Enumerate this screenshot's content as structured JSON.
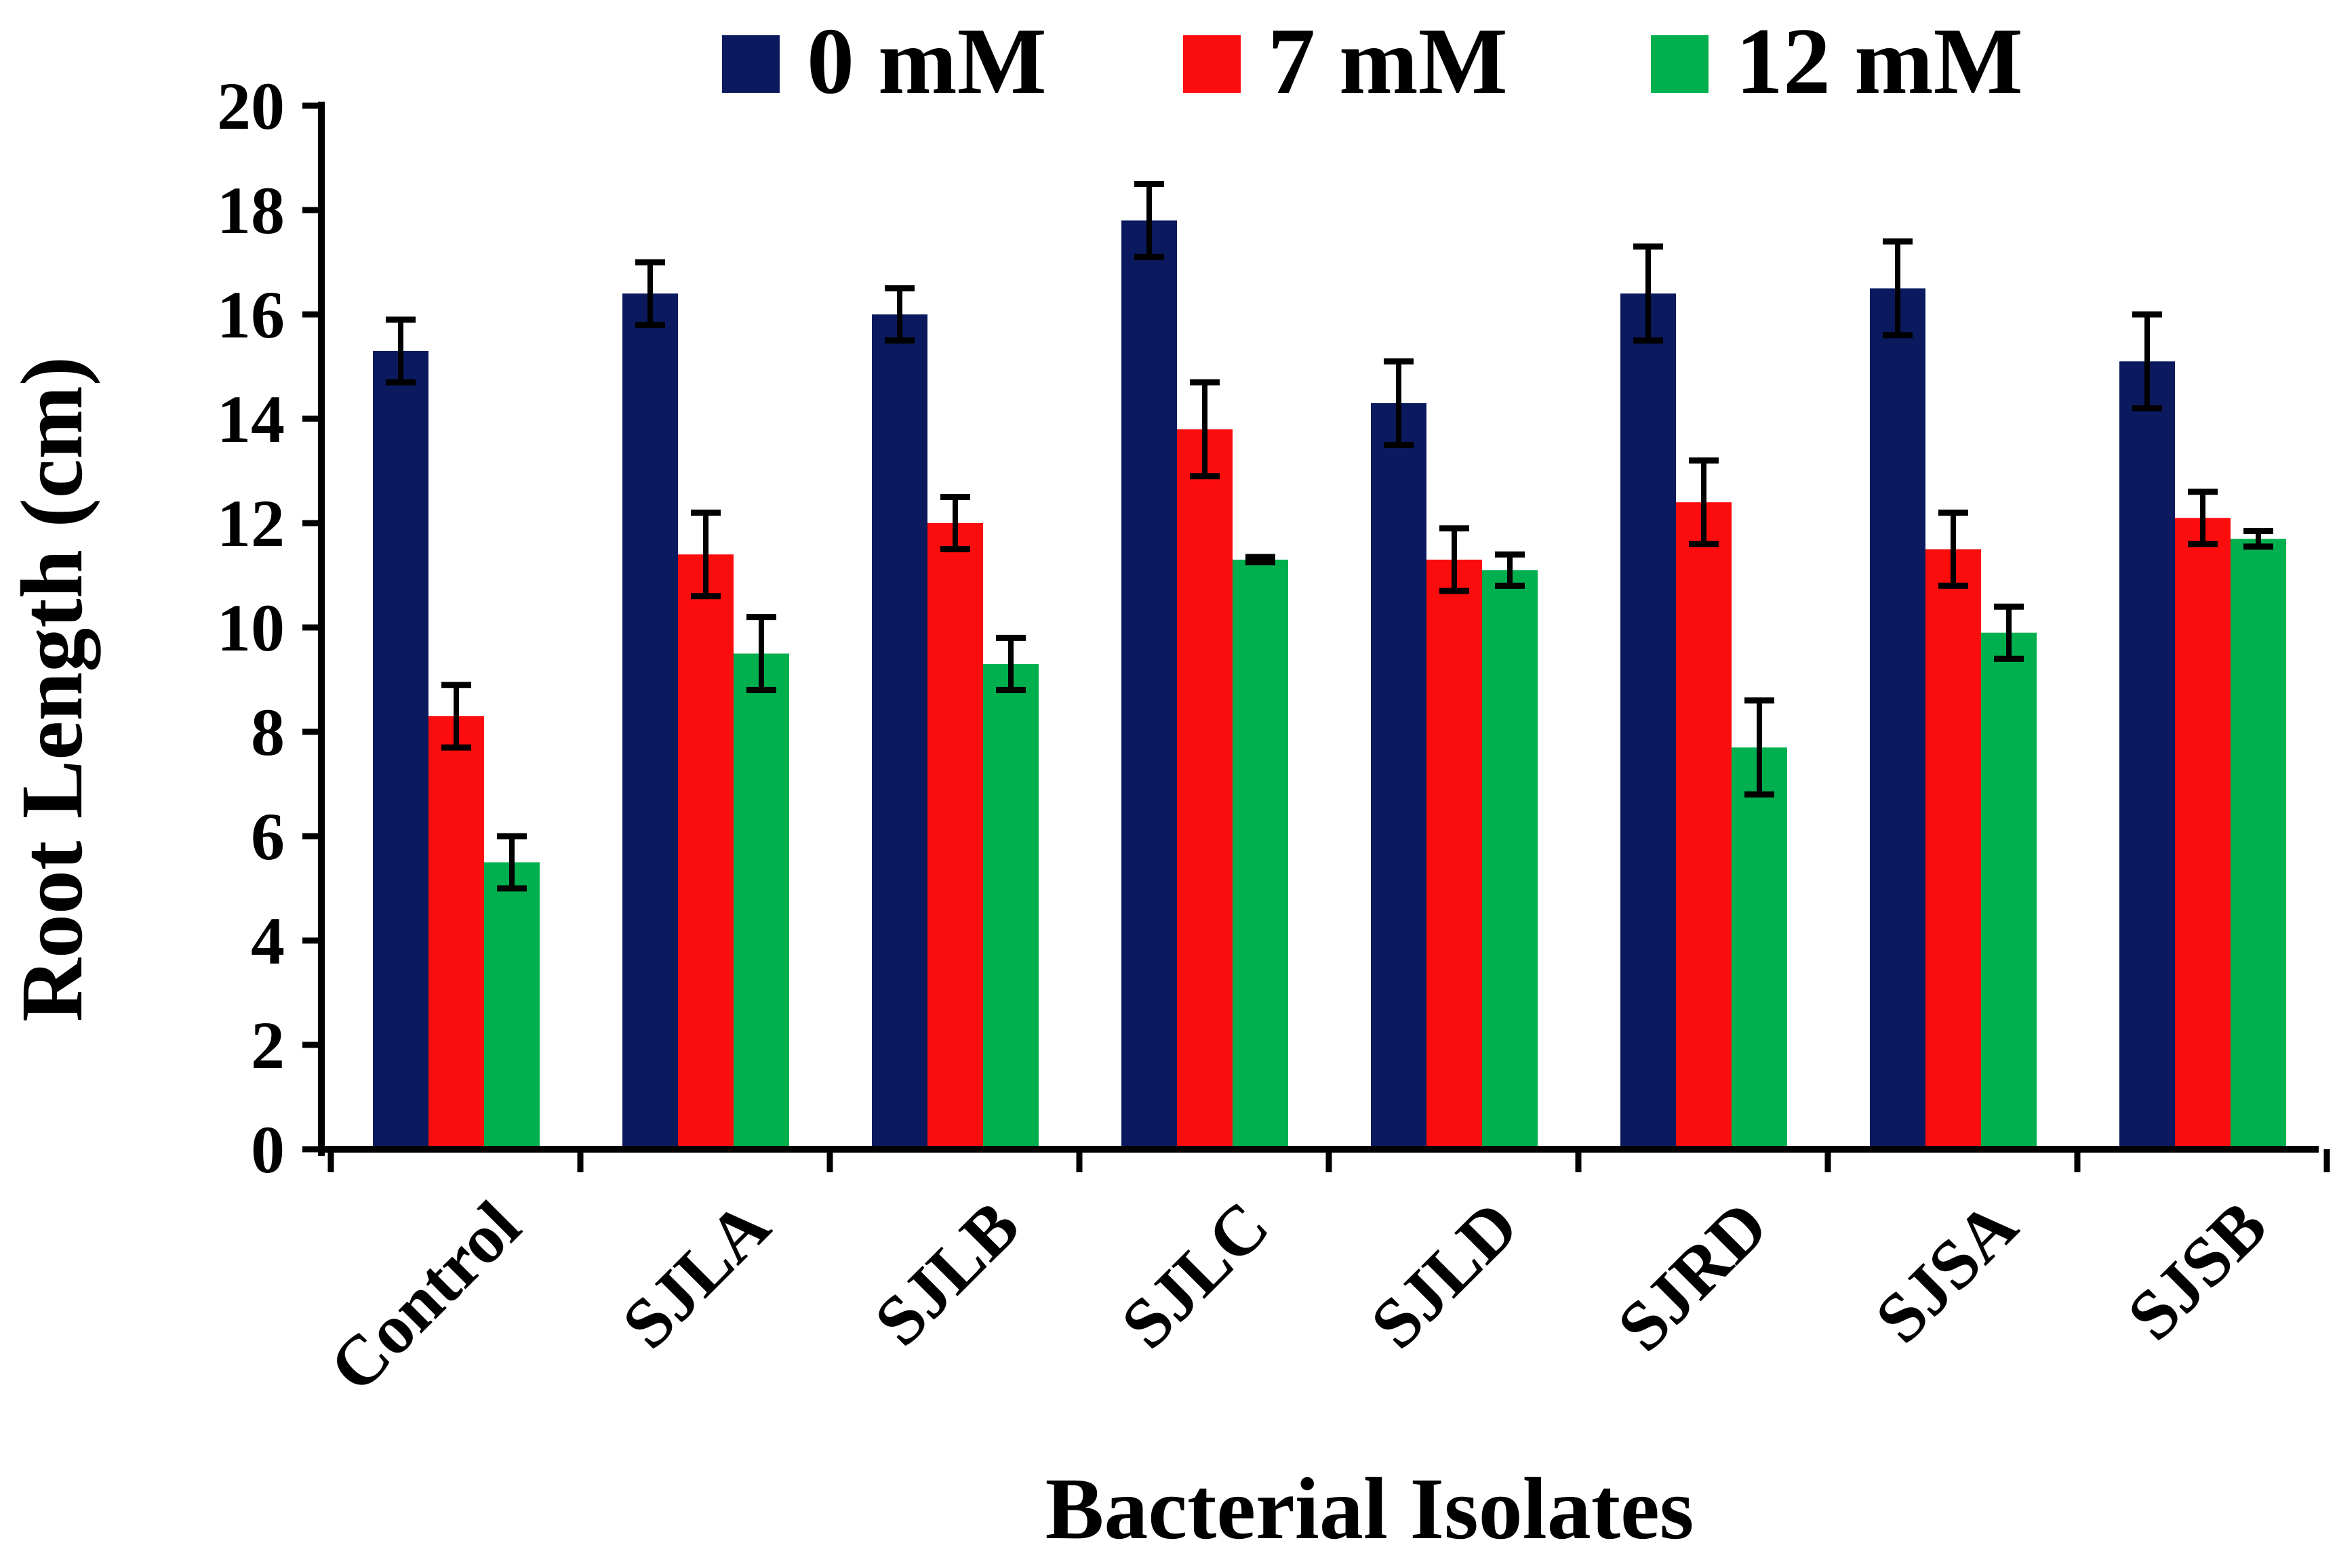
{
  "chart_data": {
    "type": "bar",
    "title": "",
    "xlabel": "Bacterial Isolates",
    "ylabel": "Root Length (cm)",
    "ylim": [
      0,
      20
    ],
    "yticks": [
      "0",
      "2",
      "4",
      "6",
      "8",
      "10",
      "12",
      "14",
      "16",
      "18",
      "20"
    ],
    "categories": [
      "Control",
      "SJLA",
      "SJLB",
      "SJLC",
      "SJLD",
      "SJRD",
      "SJSA",
      "SJSB"
    ],
    "series": [
      {
        "name": "0 mM",
        "color": "#0b1a5e",
        "values": [
          15.3,
          16.4,
          16.0,
          17.8,
          14.3,
          16.4,
          16.5,
          15.1
        ],
        "errors": [
          0.6,
          0.6,
          0.5,
          0.7,
          0.8,
          0.9,
          0.9,
          0.9
        ]
      },
      {
        "name": "7 mM",
        "color": "#fb0d0d",
        "values": [
          8.3,
          11.4,
          12.0,
          13.8,
          11.3,
          12.4,
          11.5,
          12.1
        ],
        "errors": [
          0.6,
          0.8,
          0.5,
          0.9,
          0.6,
          0.8,
          0.7,
          0.5
        ]
      },
      {
        "name": "12 mM",
        "color": "#00b04f",
        "values": [
          5.5,
          9.5,
          9.3,
          11.3,
          11.1,
          7.7,
          9.9,
          11.7
        ],
        "errors": [
          0.5,
          0.7,
          0.5,
          0.05,
          0.3,
          0.9,
          0.5,
          0.15
        ]
      }
    ],
    "legend_position": "top"
  }
}
